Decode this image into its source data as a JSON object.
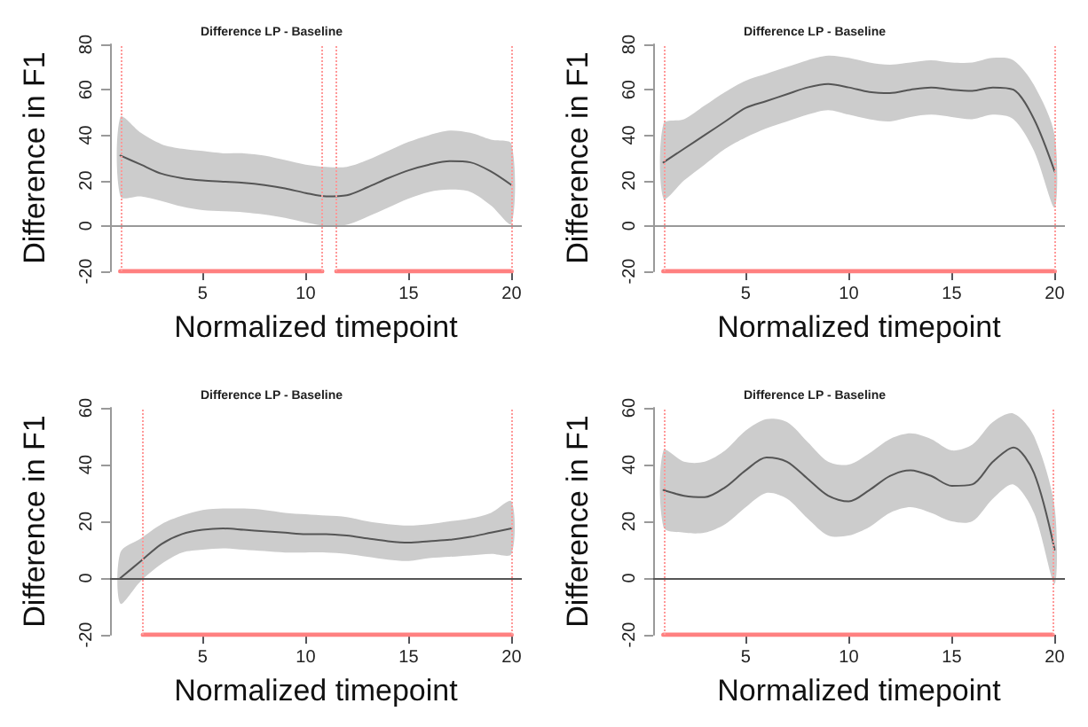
{
  "chart_data": [
    {
      "type": "line",
      "title": "Difference LP - Baseline",
      "xlabel": "Normalized timepoint",
      "ylabel": "Difference in F1",
      "x": [
        1,
        2,
        3,
        4,
        5,
        6,
        7,
        8,
        9,
        10,
        11,
        12,
        13,
        14,
        15,
        16,
        17,
        18,
        19,
        20
      ],
      "xlim": [
        0.5,
        20.5
      ],
      "xticks": [
        5,
        10,
        15,
        20
      ],
      "ylim": [
        -20,
        80
      ],
      "yticks": [
        -20,
        0,
        20,
        40,
        60,
        80
      ],
      "grid": false,
      "marker": "none",
      "line_style": "solid",
      "series": [
        {
          "color": "#555555",
          "values": [
            31,
            27,
            23,
            21,
            20,
            19.5,
            19,
            18,
            16.5,
            14.5,
            13,
            13.5,
            17,
            21,
            24.5,
            27,
            28.5,
            28,
            24,
            18
          ],
          "lower": [
            13,
            13,
            11,
            8.5,
            7,
            6.5,
            6,
            5,
            3.5,
            1.5,
            0,
            0.5,
            4,
            8,
            12,
            15,
            16,
            15,
            9,
            1
          ],
          "upper": [
            48,
            41,
            36,
            34,
            33,
            32,
            32,
            31,
            29,
            27,
            26,
            26,
            29,
            33,
            37,
            40,
            42,
            41,
            38,
            36
          ]
        },
        {
          "color": "#ff8080",
          "x": [
            1,
            10.8,
            11.2,
            11.5,
            20
          ],
          "values": [
            -20,
            -20,
            null,
            -20,
            -20
          ]
        }
      ],
      "ref_lines": [
        {
          "axis": "y",
          "value": 0,
          "color": "#999999",
          "line_style": "solid"
        },
        {
          "axis": "x",
          "value": 1,
          "color": "#ff9999",
          "line_style": "dotted"
        },
        {
          "axis": "x",
          "value": 10.8,
          "color": "#ff9999",
          "line_style": "dotted"
        },
        {
          "axis": "x",
          "value": 11.5,
          "color": "#ff9999",
          "line_style": "dotted"
        },
        {
          "axis": "x",
          "value": 20,
          "color": "#ff9999",
          "line_style": "dotted"
        }
      ]
    },
    {
      "type": "line",
      "title": "Difference LP - Baseline",
      "xlabel": "Normalized timepoint",
      "ylabel": "Difference in F1",
      "x": [
        1,
        2,
        3,
        4,
        5,
        6,
        7,
        8,
        9,
        10,
        11,
        12,
        13,
        14,
        15,
        16,
        17,
        18,
        19,
        20
      ],
      "xlim": [
        0.5,
        20.5
      ],
      "xticks": [
        5,
        10,
        15,
        20
      ],
      "ylim": [
        -20,
        80
      ],
      "yticks": [
        -20,
        0,
        20,
        40,
        60,
        80
      ],
      "grid": false,
      "marker": "none",
      "line_style": "solid",
      "series": [
        {
          "color": "#555555",
          "values": [
            28,
            34,
            40,
            46,
            52,
            55,
            58,
            61,
            62.5,
            61,
            59,
            58.5,
            60,
            61,
            60,
            59.5,
            61,
            60,
            47,
            24
          ],
          "lower": [
            12,
            20,
            27,
            34,
            39,
            43,
            46,
            49,
            51,
            49,
            47,
            46,
            48,
            49,
            48,
            47,
            49,
            47,
            33,
            8
          ],
          "upper": [
            45,
            47,
            53,
            59,
            64,
            67,
            70,
            73,
            75,
            74,
            72,
            71,
            72,
            73,
            72,
            72,
            74,
            73,
            62,
            40
          ]
        },
        {
          "color": "#ff8080",
          "x": [
            1,
            20
          ],
          "values": [
            -20,
            -20
          ]
        }
      ],
      "ref_lines": [
        {
          "axis": "y",
          "value": 0,
          "color": "#999999",
          "line_style": "solid"
        },
        {
          "axis": "x",
          "value": 1,
          "color": "#ff9999",
          "line_style": "dotted"
        },
        {
          "axis": "x",
          "value": 20,
          "color": "#ff9999",
          "line_style": "dotted"
        }
      ]
    },
    {
      "type": "line",
      "title": "Difference LP - Baseline",
      "xlabel": "Normalized timepoint",
      "ylabel": "Difference in F1",
      "x": [
        1,
        2,
        3,
        4,
        5,
        6,
        7,
        8,
        9,
        10,
        11,
        12,
        13,
        14,
        15,
        16,
        17,
        18,
        19,
        20
      ],
      "xlim": [
        0.5,
        20.5
      ],
      "xticks": [
        5,
        10,
        15,
        20
      ],
      "ylim": [
        -20,
        60
      ],
      "yticks": [
        -20,
        0,
        20,
        40,
        60
      ],
      "grid": false,
      "marker": "none",
      "line_style": "solid",
      "series": [
        {
          "color": "#555555",
          "values": [
            0,
            6,
            12,
            15.5,
            17,
            17.5,
            17,
            16.5,
            16,
            15.5,
            15.5,
            15,
            14,
            13,
            12.5,
            13,
            13.5,
            14.5,
            16,
            17.5
          ],
          "lower": [
            -9,
            -1,
            5,
            9,
            10,
            10.5,
            10,
            9.5,
            9,
            9,
            9,
            8.5,
            7.5,
            6.5,
            6,
            7,
            7.5,
            8,
            8.5,
            8.5
          ],
          "upper": [
            9,
            14,
            19,
            22,
            24,
            24.5,
            24.5,
            24,
            23,
            22.5,
            22,
            21.5,
            20,
            19,
            18.5,
            19,
            20,
            21,
            23,
            27
          ]
        },
        {
          "color": "#ff8080",
          "x": [
            2.1,
            20
          ],
          "values": [
            -20,
            -20
          ]
        }
      ],
      "ref_lines": [
        {
          "axis": "y",
          "value": 0,
          "color": "#555555",
          "line_style": "solid"
        },
        {
          "axis": "x",
          "value": 2.1,
          "color": "#ff9999",
          "line_style": "dotted"
        },
        {
          "axis": "x",
          "value": 20,
          "color": "#ff9999",
          "line_style": "dotted"
        }
      ]
    },
    {
      "type": "line",
      "title": "Difference LP - Baseline",
      "xlabel": "Normalized timepoint",
      "ylabel": "Difference in F1",
      "x": [
        1,
        2,
        3,
        4,
        5,
        6,
        7,
        8,
        9,
        10,
        11,
        12,
        13,
        14,
        15,
        16,
        17,
        18,
        19,
        20
      ],
      "xlim": [
        0.5,
        20.5
      ],
      "xticks": [
        5,
        10,
        15,
        20
      ],
      "ylim": [
        -20,
        60
      ],
      "yticks": [
        -20,
        0,
        20,
        40,
        60
      ],
      "grid": false,
      "marker": "none",
      "line_style": "solid",
      "series": [
        {
          "color": "#555555",
          "values": [
            31,
            29,
            28.5,
            32,
            38,
            42.5,
            41,
            35,
            29,
            27,
            31,
            36,
            38,
            36,
            32.5,
            33,
            41,
            46,
            37,
            10
          ],
          "lower": [
            18,
            16,
            16,
            19,
            25,
            30,
            28,
            21,
            15,
            15,
            18,
            23,
            25,
            23,
            20,
            20,
            28,
            33,
            23,
            -2
          ],
          "upper": [
            45,
            41,
            41,
            45,
            52,
            56,
            55,
            48,
            41,
            40,
            44,
            49,
            51,
            49,
            45,
            47,
            55,
            58,
            50,
            25
          ]
        },
        {
          "color": "#ff8080",
          "x": [
            1,
            19.9
          ],
          "values": [
            -20,
            -20
          ]
        }
      ],
      "ref_lines": [
        {
          "axis": "y",
          "value": 0,
          "color": "#555555",
          "line_style": "solid"
        },
        {
          "axis": "x",
          "value": 1,
          "color": "#ff9999",
          "line_style": "dotted"
        },
        {
          "axis": "x",
          "value": 19.9,
          "color": "#ff9999",
          "line_style": "dotted"
        }
      ]
    }
  ]
}
